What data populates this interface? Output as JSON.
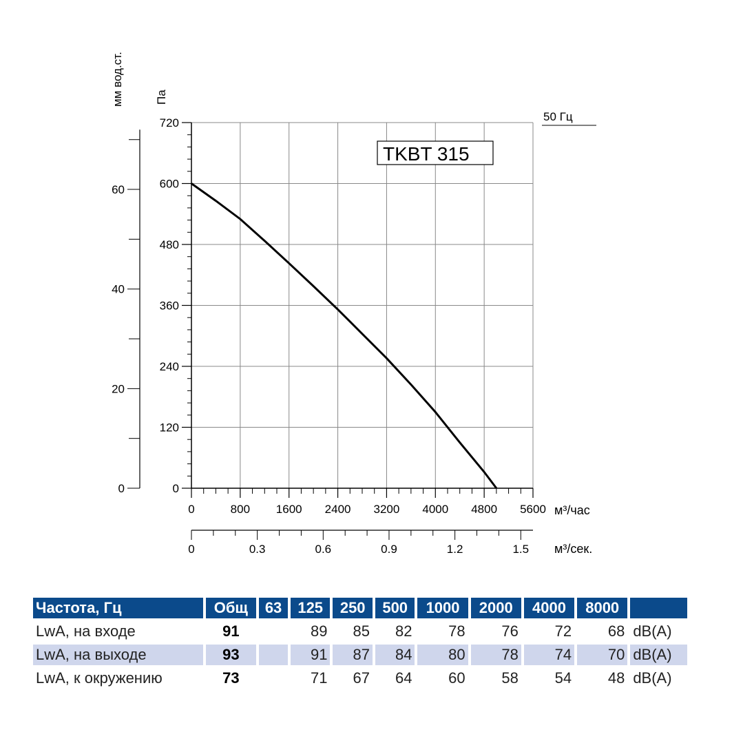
{
  "chart_data": {
    "type": "line",
    "model_label": "TKBT 315",
    "frequency_label": "50 Гц",
    "y_left_label": "мм вод.ст.",
    "y_left_ticks": [
      "0",
      "20",
      "40",
      "60"
    ],
    "y_label": "Па",
    "ylim": [
      0,
      720
    ],
    "y_ticks": [
      "0",
      "120",
      "240",
      "360",
      "480",
      "600",
      "720"
    ],
    "x_label": "м³/час",
    "xlim": [
      0,
      5600
    ],
    "x_ticks": [
      "0",
      "800",
      "1600",
      "2400",
      "3200",
      "4000",
      "4800",
      "5600"
    ],
    "x2_label": "м³/сек.",
    "x2_ticks": [
      "0",
      "0.3",
      "0.6",
      "0.9",
      "1.2",
      "1.5"
    ],
    "grid": true,
    "series": [
      {
        "x": [
          0,
          400,
          800,
          1200,
          1600,
          2000,
          2400,
          2800,
          3200,
          3600,
          4000,
          4400,
          4800,
          5000
        ],
        "y": [
          600,
          566,
          530,
          487,
          443,
          398,
          352,
          304,
          256,
          204,
          150,
          90,
          32,
          0
        ]
      }
    ]
  },
  "table": {
    "header": [
      "Частота, Гц",
      "Общ",
      "63",
      "125",
      "250",
      "500",
      "1000",
      "2000",
      "4000",
      "8000",
      ""
    ],
    "rows": [
      {
        "label": "LwA, на входе",
        "total": "91",
        "values": [
          "",
          "89",
          "85",
          "82",
          "78",
          "76",
          "72",
          "68"
        ],
        "unit": "dB(A)"
      },
      {
        "label": "LwA, на выходе",
        "total": "93",
        "values": [
          "",
          "91",
          "87",
          "84",
          "80",
          "78",
          "74",
          "70"
        ],
        "unit": "dB(A)"
      },
      {
        "label": "LwA, к окружению",
        "total": "73",
        "values": [
          "",
          "71",
          "67",
          "64",
          "60",
          "58",
          "54",
          "48"
        ],
        "unit": "dB(A)"
      }
    ]
  }
}
